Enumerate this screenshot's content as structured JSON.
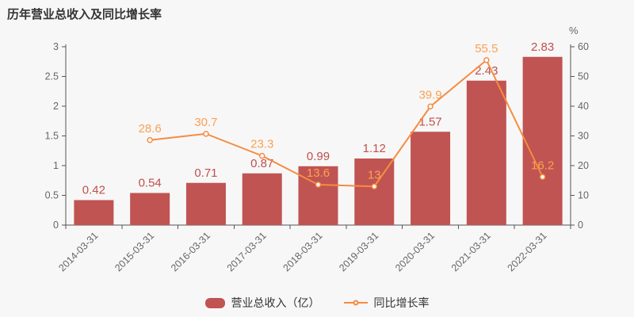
{
  "title": "历年营业总收入及同比增长率",
  "right_axis_unit": "%",
  "legend": {
    "bar_label": "营业总收入（亿）",
    "line_label": "同比增长率"
  },
  "colors": {
    "background": "#f7f7f7",
    "title": "#333333",
    "bar": "#c05452",
    "bar_label": "#c0504d",
    "line": "#f68c41",
    "line_label": "#f9a254",
    "marker_fill": "#ffffff",
    "axis": "#555555",
    "tick_label": "#666666",
    "legend_text": "#333333"
  },
  "chart_data": {
    "type": "bar+line",
    "title": "历年营业总收入及同比增长率",
    "categories": [
      "2014-03-31",
      "2015-03-31",
      "2016-03-31",
      "2017-03-31",
      "2018-03-31",
      "2019-03-31",
      "2020-03-31",
      "2021-03-31",
      "2022-03-31"
    ],
    "series": [
      {
        "name": "营业总收入（亿）",
        "type": "bar",
        "axis": "left",
        "values": [
          0.42,
          0.54,
          0.71,
          0.87,
          0.99,
          1.12,
          1.57,
          2.43,
          2.83
        ],
        "labels": [
          "0.42",
          "0.54",
          "0.71",
          "0.87",
          "0.99",
          "1.12",
          "1.57",
          "2.43",
          "2.83"
        ]
      },
      {
        "name": "同比增长率",
        "type": "line",
        "axis": "right",
        "values": [
          null,
          28.6,
          30.7,
          23.3,
          13.6,
          13,
          39.9,
          55.5,
          16.2
        ],
        "labels": [
          null,
          "28.6",
          "30.7",
          "23.3",
          "13.6",
          "13",
          "39.9",
          "55.5",
          "16.2"
        ]
      }
    ],
    "left_axis": {
      "min": 0,
      "max": 3,
      "tick_labels": [
        "0",
        "0.5",
        "1",
        "1.5",
        "2",
        "2.5",
        "3"
      ]
    },
    "right_axis": {
      "min": 0,
      "max": 60,
      "tick_labels": [
        "0",
        "10",
        "20",
        "30",
        "40",
        "50",
        "60"
      ],
      "unit": "%"
    },
    "grid": false,
    "legend_position": "bottom",
    "x_label_rotation": 45
  }
}
